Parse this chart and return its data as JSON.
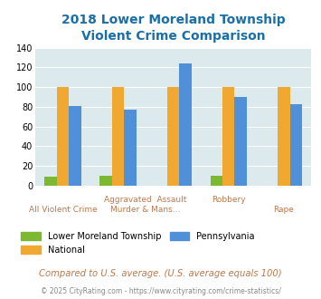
{
  "title": "2018 Lower Moreland Township\nViolent Crime Comparison",
  "lmt_values": [
    9,
    10,
    0,
    10,
    0
  ],
  "national_values": [
    100,
    100,
    100,
    100,
    100
  ],
  "pennsylvania_values": [
    81,
    77,
    124,
    90,
    83
  ],
  "lmt_color": "#7db832",
  "national_color": "#f0a830",
  "pennsylvania_color": "#4f90d8",
  "bg_color": "#dce9ed",
  "ylim": [
    0,
    140
  ],
  "yticks": [
    0,
    20,
    40,
    60,
    80,
    100,
    120,
    140
  ],
  "legend_labels": [
    "Lower Moreland Township",
    "National",
    "Pennsylvania"
  ],
  "footnote1": "Compared to U.S. average. (U.S. average equals 100)",
  "footnote2": "© 2025 CityRating.com - https://www.cityrating.com/crime-statistics/",
  "title_color": "#1a6fa8",
  "xlabel_color": "#c0784a",
  "footnote1_color": "#c0784a",
  "footnote2_color": "#888888"
}
